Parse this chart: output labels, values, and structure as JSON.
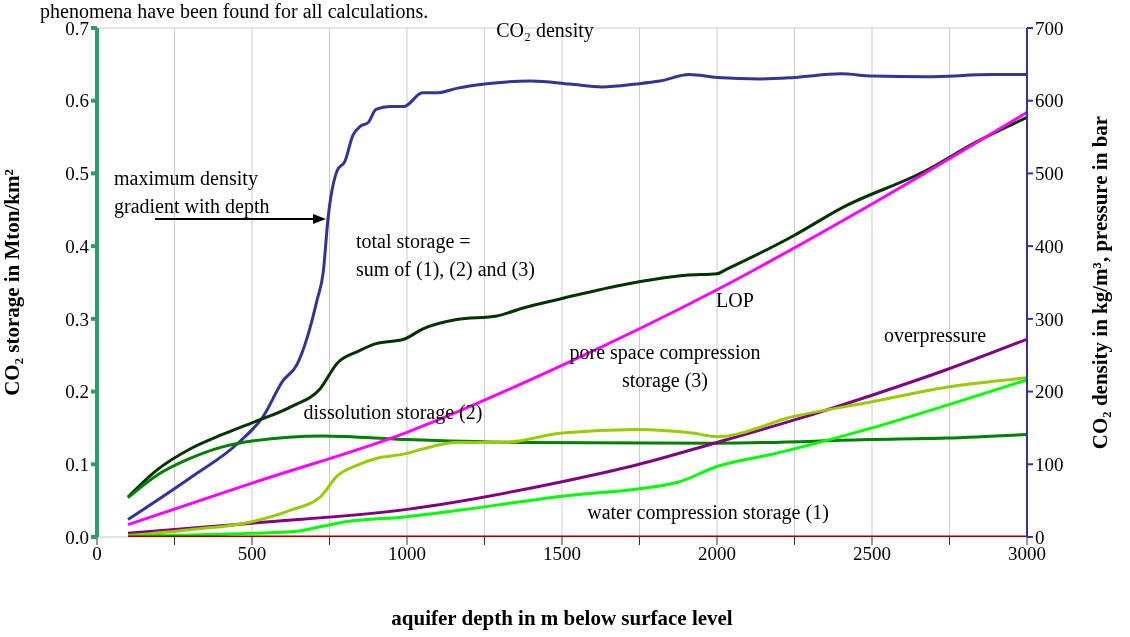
{
  "chart_data": {
    "type": "line",
    "xlabel": "aquifer depth in m below surface level",
    "ylabel": "CO₂ storage in Mton/km²",
    "y2label": "CO₂ density in kg/m³,  pressure in bar",
    "xlim": [
      0,
      3000
    ],
    "xticks": [
      0,
      {
        "value": 250,
        "label": null
      },
      500,
      {
        "value": 750,
        "label": null
      },
      1000,
      {
        "value": 1250,
        "label": null
      },
      1500,
      {
        "value": 1750,
        "label": null
      },
      2000,
      {
        "value": 2250,
        "label": null
      },
      2500,
      {
        "value": 2750,
        "label": null
      },
      3000
    ],
    "ylim": [
      0,
      0.7
    ],
    "yticks": [
      {
        "value": 0,
        "label": "0.0"
      },
      0.1,
      0.2,
      0.3,
      0.4,
      0.5,
      0.6,
      0.7
    ],
    "y2lim": [
      0,
      700
    ],
    "y2ticks": [
      0,
      100,
      200,
      300,
      400,
      500,
      600,
      700
    ],
    "grid": true,
    "legend": false,
    "marker": "none",
    "line_style": "solid",
    "series": [
      {
        "color": "#333399",
        "axis": "y2",
        "x": [
          100,
          300,
          460,
          535,
          600,
          645,
          680,
          710,
          730,
          745,
          775,
          800,
          825,
          850,
          875,
          900,
          945,
          990,
          1050,
          1100,
          1160,
          1250,
          1400,
          1525,
          1630,
          1740,
          1815,
          1910,
          2000,
          2140,
          2250,
          2400,
          2500,
          2675,
          2890,
          3000
        ],
        "values": [
          24,
          81,
          131,
          165,
          215,
          237,
          277,
          326,
          365,
          437,
          504,
          517,
          552,
          565,
          570,
          588,
          592,
          592,
          611,
          611,
          617,
          623,
          627,
          623,
          619,
          623,
          627,
          636,
          632,
          630,
          632,
          637,
          634,
          633,
          636,
          636
        ]
      },
      {
        "color": "#003300",
        "x": [
          100,
          190,
          300,
          405,
          500,
          630,
          720,
          775,
          840,
          900,
          990,
          1050,
          1160,
          1290,
          1375,
          1500,
          1710,
          1900,
          2000,
          2030,
          2250,
          2400,
          2675,
          2840,
          3000
        ],
        "values": [
          0.055,
          0.091,
          0.121,
          0.141,
          0.157,
          0.18,
          0.204,
          0.239,
          0.255,
          0.266,
          0.272,
          0.286,
          0.299,
          0.304,
          0.315,
          0.328,
          0.348,
          0.36,
          0.362,
          0.368,
          0.415,
          0.452,
          0.504,
          0.544,
          0.577
        ]
      },
      {
        "color": "#008000",
        "x": [
          100,
          190,
          300,
          405,
          500,
          730,
          1000,
          1375,
          2000,
          2500,
          2740,
          3000
        ],
        "values": [
          0.054,
          0.084,
          0.108,
          0.124,
          0.132,
          0.139,
          0.134,
          0.13,
          0.129,
          0.134,
          0.136,
          0.141
        ]
      },
      {
        "color": "#ff00ff",
        "axis": "y2",
        "x": [
          100,
          500,
          1000,
          1500,
          2000,
          2500,
          3000
        ],
        "values": [
          17,
          74,
          144,
          236,
          340,
          458,
          584
        ]
      },
      {
        "color": "#800080",
        "axis": "y2",
        "x": [
          100,
          500,
          1000,
          1500,
          1740,
          2000,
          2250,
          2500,
          2740,
          3000
        ],
        "values": [
          5,
          19,
          38,
          76,
          99,
          130,
          161,
          195,
          230,
          272
        ]
      },
      {
        "color": "#99cc00",
        "x": [
          100,
          300,
          500,
          625,
          720,
          775,
          840,
          900,
          1000,
          1050,
          1160,
          1310,
          1500,
          1740,
          1920,
          2000,
          2250,
          2500,
          2740,
          3000
        ],
        "values": [
          0.002,
          0.01,
          0.021,
          0.037,
          0.055,
          0.084,
          0.099,
          0.108,
          0.115,
          0.121,
          0.13,
          0.13,
          0.143,
          0.148,
          0.143,
          0.138,
          0.166,
          0.186,
          0.206,
          0.219
        ]
      },
      {
        "color": "#00ff00",
        "x": [
          100,
          500,
          645,
          730,
          775,
          1000,
          1500,
          1870,
          2000,
          2190,
          2500,
          2740,
          3000
        ],
        "values": [
          0.001,
          0.005,
          0.008,
          0.015,
          0.019,
          0.028,
          0.056,
          0.075,
          0.097,
          0.115,
          0.15,
          0.181,
          0.216
        ]
      },
      {
        "color": "#990000",
        "x": [
          100,
          3000
        ],
        "values": [
          0,
          0
        ]
      }
    ],
    "annotations": [
      "phenomena have been found for all calculations.",
      "CO₂ density",
      "maximum density\ngradient with depth",
      "total storage =\nsum of (1), (2) and (3)",
      "LOP",
      "overpressure",
      "pore space compression\nstorage (3)",
      "dissolution storage (2)",
      "water compression storage (1)"
    ]
  }
}
